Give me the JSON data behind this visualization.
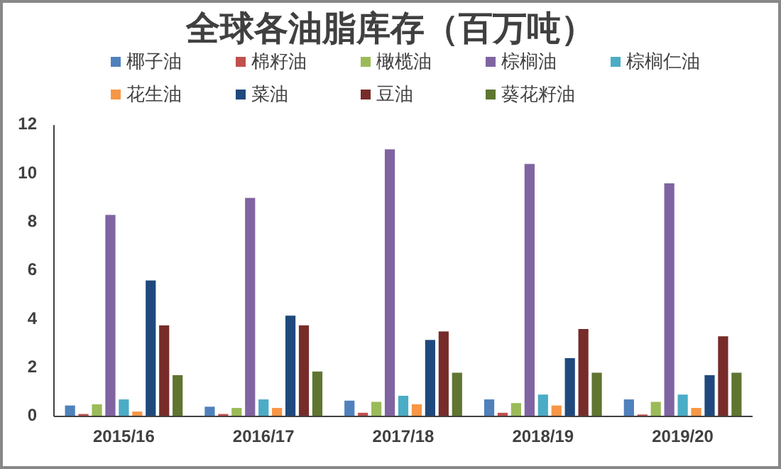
{
  "chart_data": {
    "type": "bar",
    "title": "全球各油脂库存（百万吨）",
    "categories": [
      "2015/16",
      "2016/17",
      "2017/18",
      "2018/19",
      "2019/20"
    ],
    "series": [
      {
        "name": "椰子油",
        "color": "#4f81bd",
        "values": [
          0.45,
          0.4,
          0.65,
          0.7,
          0.7
        ]
      },
      {
        "name": "棉籽油",
        "color": "#c0504d",
        "values": [
          0.1,
          0.1,
          0.15,
          0.15,
          0.08
        ]
      },
      {
        "name": "橄榄油",
        "color": "#9bbb59",
        "values": [
          0.5,
          0.35,
          0.6,
          0.55,
          0.6
        ]
      },
      {
        "name": "棕榈油",
        "color": "#8064a2",
        "values": [
          8.3,
          9.0,
          11.0,
          10.4,
          9.6
        ]
      },
      {
        "name": "棕榈仁油",
        "color": "#4bacc6",
        "values": [
          0.7,
          0.7,
          0.85,
          0.9,
          0.9
        ]
      },
      {
        "name": "花生油",
        "color": "#f79646",
        "values": [
          0.2,
          0.35,
          0.5,
          0.45,
          0.35
        ]
      },
      {
        "name": "菜油",
        "color": "#1f497d",
        "values": [
          5.6,
          4.15,
          3.15,
          2.4,
          1.7
        ]
      },
      {
        "name": "豆油",
        "color": "#772c2a",
        "values": [
          3.75,
          3.75,
          3.5,
          3.6,
          3.3
        ]
      },
      {
        "name": "葵花籽油",
        "color": "#5f7530",
        "values": [
          1.7,
          1.85,
          1.8,
          1.8,
          1.8
        ]
      }
    ],
    "ylim": [
      0,
      12
    ],
    "yticks": [
      0,
      2,
      4,
      6,
      8,
      10,
      12
    ],
    "grid": false,
    "legend": "top"
  }
}
